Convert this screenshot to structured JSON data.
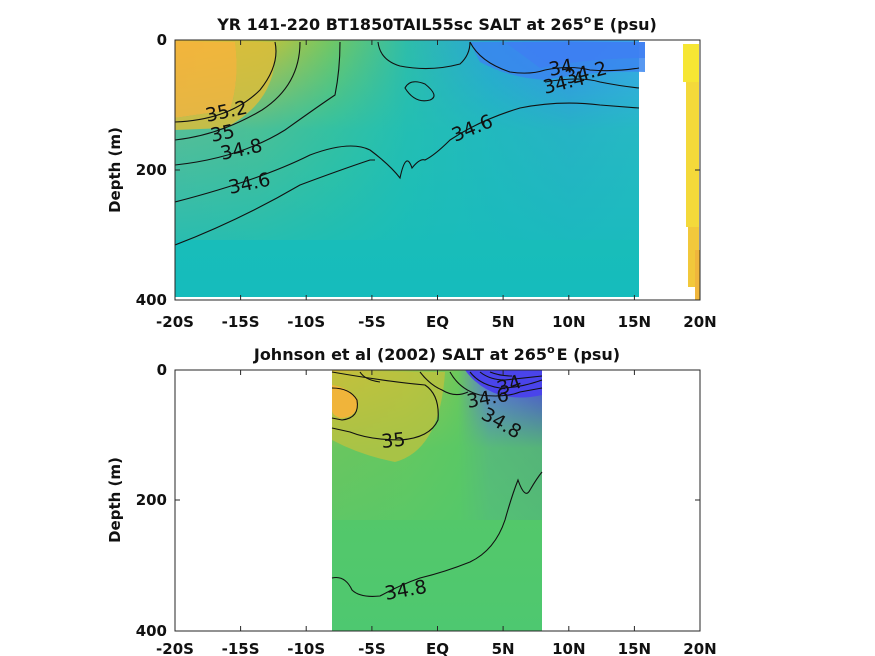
{
  "chart_data": [
    {
      "type": "contour",
      "title": "YR 141-220 BT1850TAIL55sc SALT at 265",
      "title_sup": "o",
      "title_suffix": "E (psu)",
      "ylabel": "Depth (m)",
      "xlabel": "",
      "x_tick_labels": [
        "-20S",
        "-15S",
        "-10S",
        "-5S",
        "EQ",
        "5N",
        "10N",
        "15N",
        "20N"
      ],
      "y_tick_labels": [
        "0",
        "200",
        "400"
      ],
      "xlim": [
        -20,
        20
      ],
      "ylim": [
        0,
        400
      ],
      "y_reversed": true,
      "data_extent_lat": [
        -20,
        15.5
      ],
      "contour_labels": [
        "35.2",
        "35",
        "34.8",
        "34.6",
        "34.6",
        "34",
        "34.2",
        "34.4"
      ],
      "colorbar_colors": [
        "#f6e633",
        "#f0bc3c"
      ]
    },
    {
      "type": "contour",
      "title": "Johnson et al (2002) SALT at 265",
      "title_sup": "o",
      "title_suffix": "E (psu)",
      "ylabel": "Depth (m)",
      "xlabel": "",
      "x_tick_labels": [
        "-20S",
        "-15S",
        "-10S",
        "-5S",
        "EQ",
        "5N",
        "10N",
        "15N",
        "20N"
      ],
      "y_tick_labels": [
        "0",
        "200",
        "400"
      ],
      "xlim": [
        -20,
        20
      ],
      "ylim": [
        0,
        400
      ],
      "y_reversed": true,
      "data_extent_lat": [
        -8,
        8
      ],
      "contour_labels": [
        "35",
        "34.8",
        "34.6",
        "34",
        "34.8"
      ]
    }
  ]
}
